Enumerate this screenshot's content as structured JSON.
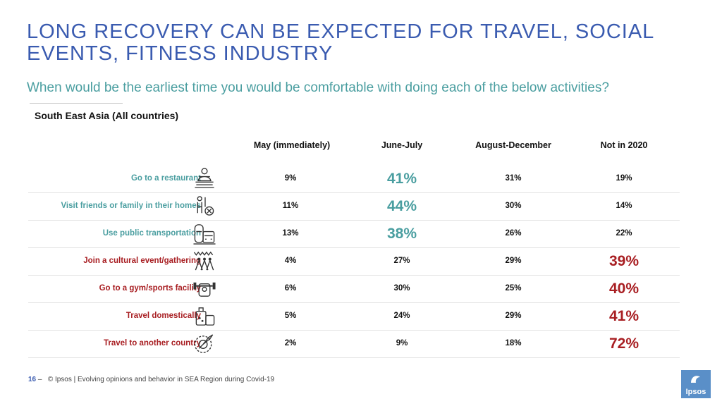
{
  "title": "LONG RECOVERY CAN BE EXPECTED FOR TRAVEL, SOCIAL EVENTS, FITNESS INDUSTRY",
  "subtitle": "When would be the earliest time you would be comfortable with doing each of the below activities?",
  "region": "South East Asia (All countries)",
  "columns": [
    "May (immediately)",
    "June-July",
    "August-December",
    "Not in 2020"
  ],
  "rows": [
    {
      "label": "Go to a restaurant",
      "icon": "restaurant-icon",
      "values": [
        "9%",
        "41%",
        "31%",
        "19%"
      ],
      "highlight": 1,
      "tone": "teal"
    },
    {
      "label": "Visit friends or family in their homes",
      "icon": "home-visit-icon",
      "values": [
        "11%",
        "44%",
        "30%",
        "14%"
      ],
      "highlight": 1,
      "tone": "teal"
    },
    {
      "label": "Use public transportation",
      "icon": "transport-icon",
      "values": [
        "13%",
        "38%",
        "26%",
        "22%"
      ],
      "highlight": 1,
      "tone": "teal"
    },
    {
      "label": "Join a cultural event/gathering",
      "icon": "crowd-icon",
      "values": [
        "4%",
        "27%",
        "29%",
        "39%"
      ],
      "highlight": 3,
      "tone": "red"
    },
    {
      "label": "Go to a gym/sports facility",
      "icon": "gym-icon",
      "values": [
        "6%",
        "30%",
        "25%",
        "40%"
      ],
      "highlight": 3,
      "tone": "red"
    },
    {
      "label": "Travel domestically",
      "icon": "luggage-icon",
      "values": [
        "5%",
        "24%",
        "29%",
        "41%"
      ],
      "highlight": 3,
      "tone": "red"
    },
    {
      "label": "Travel to another country",
      "icon": "plane-globe-icon",
      "values": [
        "2%",
        "9%",
        "18%",
        "72%"
      ],
      "highlight": 3,
      "tone": "red"
    }
  ],
  "footer": {
    "page": "16",
    "separator": "–",
    "text": "© Ipsos | Evolving opinions and behavior in SEA Region during Covid-19"
  },
  "logo": "Ipsos",
  "colors": {
    "title": "#3a5bb0",
    "teal": "#4a9ea0",
    "red": "#a81e22"
  }
}
